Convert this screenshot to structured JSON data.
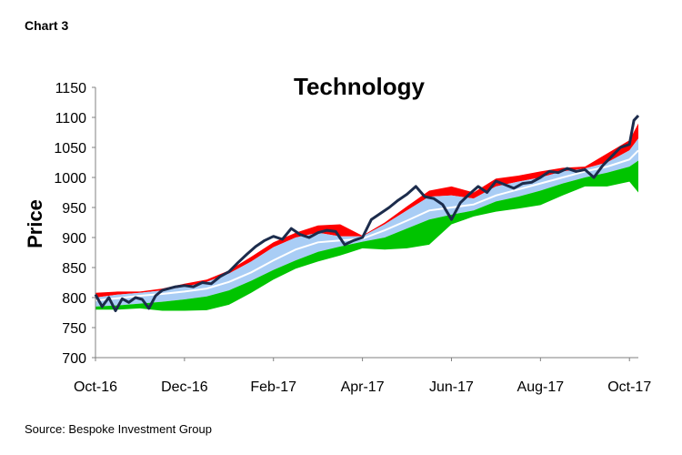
{
  "header": {
    "label": "Chart 3"
  },
  "footer": {
    "source": "Source: Bespoke Investment Group"
  },
  "chart_data": {
    "type": "area",
    "title": "Technology",
    "xlabel": "",
    "ylabel": "Price",
    "ylim": [
      700,
      1150
    ],
    "yticks": [
      700,
      750,
      800,
      850,
      900,
      950,
      1000,
      1050,
      1100,
      1150
    ],
    "xlim": [
      0,
      12.2
    ],
    "xticks": [
      {
        "label": "Oct-16",
        "x": 0
      },
      {
        "label": "Dec-16",
        "x": 2
      },
      {
        "label": "Feb-17",
        "x": 4
      },
      {
        "label": "Apr-17",
        "x": 6
      },
      {
        "label": "Jun-17",
        "x": 8
      },
      {
        "label": "Aug-17",
        "x": 10
      },
      {
        "label": "Oct-17",
        "x": 12
      }
    ],
    "grid": false,
    "colors": {
      "upper_extreme": "#ff0000",
      "upper_band": "#a9cdf5",
      "lower_band": "#a9cdf5",
      "lower_extreme": "#00c400",
      "moving_average": "#ffffff",
      "price": "#1c2c4c"
    },
    "bands": {
      "x": [
        0,
        0.5,
        1,
        1.5,
        2,
        2.5,
        3,
        3.5,
        4,
        4.5,
        5,
        5.5,
        6,
        6.5,
        7,
        7.5,
        8,
        8.5,
        9,
        9.5,
        10,
        10.5,
        11,
        11.5,
        12,
        12.2
      ],
      "upper_extreme": [
        808,
        810,
        810,
        815,
        823,
        830,
        845,
        868,
        892,
        908,
        920,
        922,
        903,
        925,
        952,
        978,
        985,
        975,
        998,
        1003,
        1010,
        1016,
        1018,
        1040,
        1062,
        1090
      ],
      "upper_band": [
        800,
        805,
        808,
        812,
        818,
        826,
        840,
        860,
        884,
        900,
        908,
        902,
        902,
        922,
        945,
        968,
        970,
        965,
        985,
        993,
        1000,
        1010,
        1015,
        1025,
        1045,
        1065
      ],
      "moving_average": [
        795,
        799,
        803,
        806,
        810,
        815,
        826,
        842,
        862,
        880,
        892,
        895,
        898,
        912,
        928,
        945,
        950,
        955,
        970,
        980,
        990,
        1000,
        1010,
        1018,
        1030,
        1045
      ],
      "lower_band": [
        785,
        787,
        790,
        793,
        797,
        802,
        812,
        828,
        846,
        862,
        876,
        885,
        893,
        900,
        915,
        930,
        938,
        945,
        960,
        968,
        978,
        990,
        1000,
        1008,
        1018,
        1028
      ],
      "lower_extreme": [
        780,
        780,
        782,
        778,
        778,
        779,
        788,
        808,
        830,
        848,
        860,
        870,
        882,
        880,
        882,
        888,
        922,
        935,
        943,
        948,
        954,
        970,
        985,
        985,
        993,
        975
      ]
    },
    "price": {
      "x": [
        0,
        0.15,
        0.3,
        0.45,
        0.6,
        0.75,
        0.9,
        1.05,
        1.2,
        1.35,
        1.5,
        1.65,
        1.8,
        2.0,
        2.2,
        2.4,
        2.6,
        2.8,
        3.0,
        3.2,
        3.4,
        3.6,
        3.8,
        4.0,
        4.2,
        4.4,
        4.6,
        4.8,
        5.0,
        5.2,
        5.4,
        5.6,
        5.8,
        6.0,
        6.2,
        6.4,
        6.6,
        6.8,
        7.0,
        7.2,
        7.4,
        7.6,
        7.8,
        8.0,
        8.2,
        8.4,
        8.6,
        8.8,
        9.0,
        9.2,
        9.4,
        9.6,
        9.8,
        10.0,
        10.2,
        10.4,
        10.6,
        10.8,
        11.0,
        11.2,
        11.4,
        11.6,
        11.8,
        12.0,
        12.1,
        12.2
      ],
      "y": [
        805,
        785,
        800,
        778,
        798,
        792,
        800,
        797,
        782,
        803,
        812,
        815,
        818,
        820,
        818,
        825,
        823,
        835,
        843,
        858,
        872,
        885,
        895,
        902,
        897,
        915,
        905,
        900,
        908,
        912,
        910,
        888,
        895,
        900,
        930,
        940,
        950,
        962,
        972,
        985,
        968,
        965,
        955,
        930,
        958,
        972,
        985,
        975,
        994,
        988,
        982,
        990,
        992,
        1000,
        1010,
        1008,
        1015,
        1010,
        1013,
        1000,
        1020,
        1035,
        1050,
        1055,
        1095,
        1103
      ]
    }
  }
}
